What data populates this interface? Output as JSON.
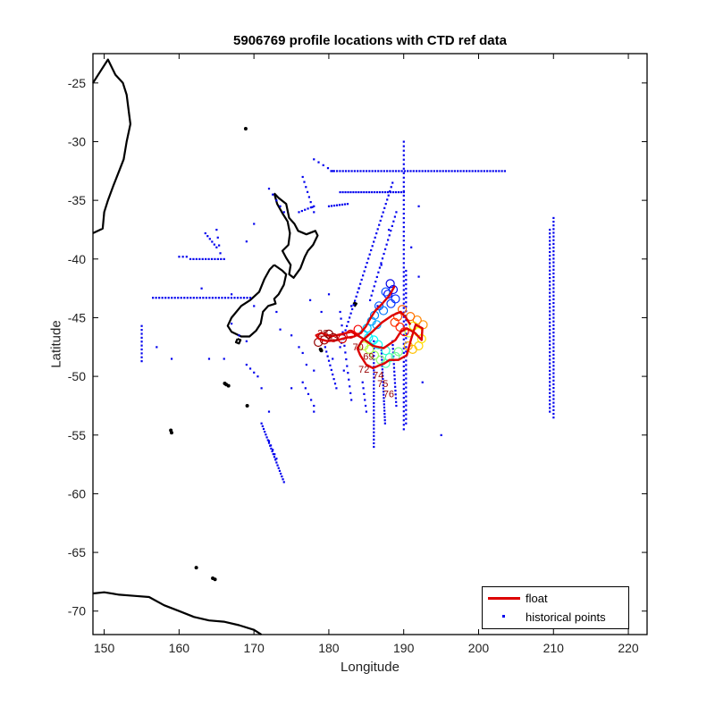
{
  "chart_data": {
    "type": "scatter",
    "title": "5906769 profile locations with CTD ref data",
    "xlabel": "Longitude",
    "ylabel": "Latitude",
    "xlim": [
      148.5,
      222.5
    ],
    "ylim": [
      -72,
      -22.5
    ],
    "xticks": [
      150,
      160,
      170,
      180,
      190,
      200,
      210,
      220
    ],
    "yticks": [
      -25,
      -30,
      -35,
      -40,
      -45,
      -50,
      -55,
      -60,
      -65,
      -70
    ],
    "grid": false,
    "legend_position": "bottom-right",
    "colors": {
      "float": "#dd0000",
      "historical": "#0000ee",
      "coast": "#000000"
    },
    "legend": [
      {
        "label": "float",
        "marker": "line",
        "color": "#dd0000"
      },
      {
        "label": "historical points",
        "marker": "dot",
        "color": "#0000ee"
      }
    ],
    "float_track": {
      "name": "float",
      "points": [
        [
          188.8,
          -42.3
        ],
        [
          188.1,
          -43.1
        ],
        [
          187.0,
          -43.9
        ],
        [
          186.2,
          -44.4
        ],
        [
          185.6,
          -45.0
        ],
        [
          185.0,
          -45.7
        ],
        [
          184.3,
          -46.3
        ],
        [
          183.4,
          -46.6
        ],
        [
          182.4,
          -46.7
        ],
        [
          181.2,
          -46.9
        ],
        [
          179.8,
          -47.0
        ],
        [
          178.7,
          -46.8
        ],
        [
          178.3,
          -46.5
        ],
        [
          179.0,
          -46.3
        ],
        [
          180.3,
          -46.6
        ],
        [
          181.7,
          -46.4
        ],
        [
          183.0,
          -46.2
        ],
        [
          184.6,
          -46.8
        ],
        [
          185.9,
          -47.4
        ],
        [
          187.3,
          -47.6
        ],
        [
          188.9,
          -46.9
        ],
        [
          189.6,
          -46.2
        ],
        [
          190.4,
          -45.9
        ],
        [
          191.5,
          -46.3
        ],
        [
          192.4,
          -46.9
        ],
        [
          192.5,
          -45.9
        ],
        [
          191.6,
          -45.6
        ],
        [
          191.0,
          -46.8
        ],
        [
          190.4,
          -48.2
        ],
        [
          189.3,
          -48.6
        ],
        [
          188.1,
          -48.6
        ],
        [
          187.4,
          -48.9
        ],
        [
          186.6,
          -49.1
        ],
        [
          185.9,
          -49.3
        ],
        [
          185.0,
          -49.0
        ],
        [
          184.2,
          -48.2
        ],
        [
          183.8,
          -47.6
        ],
        [
          184.4,
          -47.0
        ],
        [
          185.8,
          -46.2
        ],
        [
          187.1,
          -45.4
        ],
        [
          188.5,
          -44.8
        ],
        [
          189.6,
          -44.5
        ],
        [
          190.3,
          -45.0
        ],
        [
          190.9,
          -45.6
        ]
      ],
      "colored_points": [
        [
          188.2,
          -42.1
        ],
        [
          188.6,
          -42.6
        ],
        [
          187.9,
          -43.0
        ],
        [
          188.9,
          -43.4
        ],
        [
          188.3,
          -43.8
        ],
        [
          187.6,
          -42.8
        ],
        [
          186.7,
          -44.0
        ],
        [
          187.3,
          -44.4
        ],
        [
          186.1,
          -44.8
        ],
        [
          185.7,
          -45.3
        ],
        [
          186.4,
          -45.6
        ],
        [
          185.1,
          -45.9
        ],
        [
          184.6,
          -46.4
        ],
        [
          185.3,
          -46.7
        ],
        [
          186.0,
          -46.9
        ],
        [
          186.6,
          -47.3
        ],
        [
          187.6,
          -47.8
        ],
        [
          188.1,
          -48.4
        ],
        [
          187.6,
          -48.9
        ],
        [
          188.9,
          -48.3
        ],
        [
          189.3,
          -47.9
        ],
        [
          186.9,
          -48.6
        ],
        [
          186.1,
          -48.2
        ],
        [
          185.4,
          -47.7
        ],
        [
          184.7,
          -47.4
        ],
        [
          190.7,
          -46.3
        ],
        [
          191.3,
          -45.7
        ],
        [
          191.9,
          -46.2
        ],
        [
          192.4,
          -46.8
        ],
        [
          192.0,
          -47.4
        ],
        [
          191.2,
          -47.7
        ],
        [
          190.6,
          -47.4
        ],
        [
          192.6,
          -45.6
        ],
        [
          191.8,
          -45.2
        ],
        [
          190.9,
          -44.9
        ],
        [
          189.8,
          -44.3
        ],
        [
          189.2,
          -44.9
        ],
        [
          188.8,
          -45.4
        ],
        [
          189.5,
          -45.8
        ],
        [
          190.1,
          -46.2
        ],
        [
          183.9,
          -46.0
        ],
        [
          182.9,
          -46.4
        ],
        [
          181.8,
          -46.8
        ],
        [
          180.6,
          -46.7
        ],
        [
          179.4,
          -46.9
        ],
        [
          178.6,
          -47.1
        ],
        [
          180.0,
          -46.4
        ]
      ],
      "labels": [
        {
          "text": "75",
          "x": 187.2,
          "y": -50.9
        },
        {
          "text": "76",
          "x": 188.0,
          "y": -51.8
        },
        {
          "text": "72",
          "x": 184.7,
          "y": -49.7
        },
        {
          "text": "69",
          "x": 185.3,
          "y": -48.6
        },
        {
          "text": "70",
          "x": 183.9,
          "y": -47.8
        },
        {
          "text": "74",
          "x": 186.6,
          "y": -50.2
        },
        {
          "text": "28",
          "x": 179.2,
          "y": -46.6
        },
        {
          "text": "33",
          "x": 180.5,
          "y": -47.0
        }
      ]
    },
    "historical": {
      "name": "historical points",
      "segments": [
        {
          "x1": 180.3,
          "y1": -32.5,
          "x2": 203.5,
          "y2": -32.5,
          "n": 60
        },
        {
          "x1": 178.0,
          "y1": -31.5,
          "x2": 180.5,
          "y2": -32.5,
          "n": 5
        },
        {
          "x1": 190.0,
          "y1": -30.0,
          "x2": 190.0,
          "y2": -54.5,
          "n": 65
        },
        {
          "x1": 190.3,
          "y1": -41.0,
          "x2": 190.3,
          "y2": -54.0,
          "n": 35
        },
        {
          "x1": 210.0,
          "y1": -36.5,
          "x2": 210.0,
          "y2": -53.5,
          "n": 55
        },
        {
          "x1": 209.5,
          "y1": -37.5,
          "x2": 209.5,
          "y2": -53.0,
          "n": 50
        },
        {
          "x1": 188.5,
          "y1": -33.5,
          "x2": 181.5,
          "y2": -47.5,
          "n": 40
        },
        {
          "x1": 189.0,
          "y1": -36.0,
          "x2": 185.5,
          "y2": -43.5,
          "n": 20
        },
        {
          "x1": 181.5,
          "y1": -34.3,
          "x2": 190.0,
          "y2": -34.3,
          "n": 25
        },
        {
          "x1": 180.0,
          "y1": -35.5,
          "x2": 182.5,
          "y2": -35.3,
          "n": 8
        },
        {
          "x1": 176.5,
          "y1": -33.0,
          "x2": 178.0,
          "y2": -36.0,
          "n": 8
        },
        {
          "x1": 176.0,
          "y1": -36.0,
          "x2": 178.0,
          "y2": -35.5,
          "n": 6
        },
        {
          "x1": 172.0,
          "y1": -34.0,
          "x2": 174.0,
          "y2": -36.0,
          "n": 5
        },
        {
          "x1": 156.5,
          "y1": -43.3,
          "x2": 169.5,
          "y2": -43.3,
          "n": 32
        },
        {
          "x1": 160.0,
          "y1": -39.8,
          "x2": 161.0,
          "y2": -39.8,
          "n": 3
        },
        {
          "x1": 161.5,
          "y1": -40.0,
          "x2": 166.0,
          "y2": -40.0,
          "n": 12
        },
        {
          "x1": 163.5,
          "y1": -37.8,
          "x2": 165.0,
          "y2": -39.0,
          "n": 6
        },
        {
          "x1": 165.0,
          "y1": -37.5,
          "x2": 165.5,
          "y2": -39.5,
          "n": 4
        },
        {
          "x1": 155.0,
          "y1": -45.7,
          "x2": 155.0,
          "y2": -48.7,
          "n": 10
        },
        {
          "x1": 171.0,
          "y1": -54.0,
          "x2": 174.0,
          "y2": -59.0,
          "n": 22
        },
        {
          "x1": 172.0,
          "y1": -55.5,
          "x2": 173.0,
          "y2": -57.0,
          "n": 5
        },
        {
          "x1": 186.0,
          "y1": -47.0,
          "x2": 186.0,
          "y2": -56.0,
          "n": 30
        },
        {
          "x1": 187.0,
          "y1": -47.5,
          "x2": 187.5,
          "y2": -54.0,
          "n": 25
        },
        {
          "x1": 188.5,
          "y1": -47.0,
          "x2": 189.0,
          "y2": -52.5,
          "n": 18
        },
        {
          "x1": 181.5,
          "y1": -44.5,
          "x2": 183.0,
          "y2": -52.0,
          "n": 14
        },
        {
          "x1": 179.5,
          "y1": -47.5,
          "x2": 181.0,
          "y2": -51.0,
          "n": 10
        },
        {
          "x1": 169.0,
          "y1": -49.0,
          "x2": 170.5,
          "y2": -50.0,
          "n": 4
        },
        {
          "x1": 176.5,
          "y1": -50.5,
          "x2": 178.0,
          "y2": -52.5,
          "n": 5
        },
        {
          "x1": 184.5,
          "y1": -50.5,
          "x2": 185.0,
          "y2": -53.0,
          "n": 6
        }
      ],
      "points": [
        [
          157,
          -47.5
        ],
        [
          159,
          -48.5
        ],
        [
          163,
          -42.5
        ],
        [
          167,
          -43.0
        ],
        [
          169,
          -38.5
        ],
        [
          170,
          -37.0
        ],
        [
          167,
          -45.5
        ],
        [
          168,
          -46.5
        ],
        [
          169,
          -47.0
        ],
        [
          170,
          -44.0
        ],
        [
          173,
          -44.5
        ],
        [
          173.5,
          -46.0
        ],
        [
          176,
          -47.5
        ],
        [
          176.5,
          -48.0
        ],
        [
          177,
          -49.0
        ],
        [
          178,
          -49.5
        ],
        [
          175,
          -46.5
        ],
        [
          179,
          -44.5
        ],
        [
          180,
          -43.0
        ],
        [
          184,
          -42.5
        ],
        [
          183,
          -44.0
        ],
        [
          192,
          -35.5
        ],
        [
          191,
          -39.0
        ],
        [
          192,
          -41.5
        ],
        [
          192.5,
          -50.5
        ],
        [
          195,
          -55.0
        ],
        [
          164,
          -48.5
        ],
        [
          166,
          -48.5
        ],
        [
          171,
          -51.0
        ],
        [
          172,
          -53.0
        ],
        [
          175,
          -51.0
        ],
        [
          178,
          -53.0
        ],
        [
          177.5,
          -43.5
        ],
        [
          187,
          -40.5
        ],
        [
          186.5,
          -44.0
        ],
        [
          188,
          -37.5
        ],
        [
          180.5,
          -48.5
        ],
        [
          182,
          -49.5
        ]
      ]
    },
    "coastlines": {
      "australia_east": [
        [
          148.5,
          -25.0
        ],
        [
          149.5,
          -24.0
        ],
        [
          150.5,
          -23.0
        ],
        [
          151.5,
          -24.3
        ],
        [
          152.5,
          -25.0
        ],
        [
          153.0,
          -26.0
        ],
        [
          153.3,
          -27.5
        ],
        [
          153.5,
          -28.5
        ],
        [
          153.0,
          -30.0
        ],
        [
          152.6,
          -31.5
        ],
        [
          152.0,
          -32.5
        ],
        [
          151.2,
          -33.8
        ],
        [
          150.5,
          -35.0
        ],
        [
          150.0,
          -36.0
        ],
        [
          149.8,
          -37.4
        ],
        [
          148.5,
          -37.8
        ]
      ],
      "new_zealand_north": [
        [
          172.7,
          -34.4
        ],
        [
          173.3,
          -34.8
        ],
        [
          174.3,
          -35.3
        ],
        [
          174.7,
          -36.5
        ],
        [
          175.4,
          -37.0
        ],
        [
          175.9,
          -37.6
        ],
        [
          177.0,
          -37.9
        ],
        [
          178.2,
          -37.6
        ],
        [
          178.5,
          -38.0
        ],
        [
          177.9,
          -38.8
        ],
        [
          177.2,
          -39.3
        ],
        [
          176.8,
          -39.8
        ],
        [
          176.2,
          -40.8
        ],
        [
          175.3,
          -41.6
        ],
        [
          174.7,
          -41.3
        ],
        [
          174.9,
          -40.5
        ],
        [
          174.3,
          -39.9
        ],
        [
          173.8,
          -39.3
        ],
        [
          174.6,
          -38.8
        ],
        [
          174.8,
          -37.8
        ],
        [
          174.5,
          -36.8
        ],
        [
          173.9,
          -36.2
        ],
        [
          173.1,
          -35.3
        ],
        [
          172.7,
          -34.4
        ]
      ],
      "new_zealand_south": [
        [
          172.7,
          -40.5
        ],
        [
          173.8,
          -41.0
        ],
        [
          174.3,
          -41.3
        ],
        [
          174.0,
          -42.2
        ],
        [
          173.3,
          -43.0
        ],
        [
          172.7,
          -43.4
        ],
        [
          172.9,
          -43.8
        ],
        [
          171.9,
          -44.0
        ],
        [
          171.2,
          -44.5
        ],
        [
          170.9,
          -45.5
        ],
        [
          170.3,
          -46.1
        ],
        [
          169.4,
          -46.6
        ],
        [
          168.3,
          -46.6
        ],
        [
          167.0,
          -46.2
        ],
        [
          166.5,
          -45.7
        ],
        [
          167.0,
          -45.0
        ],
        [
          168.3,
          -44.0
        ],
        [
          169.5,
          -43.5
        ],
        [
          170.7,
          -42.8
        ],
        [
          171.4,
          -41.7
        ],
        [
          172.1,
          -40.9
        ],
        [
          172.7,
          -40.5
        ]
      ],
      "stewart_island": [
        [
          167.8,
          -46.8
        ],
        [
          168.2,
          -46.9
        ],
        [
          168.0,
          -47.2
        ],
        [
          167.6,
          -47.1
        ],
        [
          167.8,
          -46.8
        ]
      ],
      "chatham": [
        [
          183.3,
          -43.7
        ],
        [
          183.7,
          -43.8
        ],
        [
          183.5,
          -44.0
        ],
        [
          183.3,
          -43.7
        ]
      ],
      "small_islands": [
        [
          166.1,
          -50.6
        ],
        [
          166.3,
          -50.7
        ],
        [
          169.1,
          -52.5
        ],
        [
          158.9,
          -54.6
        ],
        [
          159.0,
          -54.8
        ],
        [
          168.9,
          -28.9
        ],
        [
          162.3,
          -66.3
        ],
        [
          164.5,
          -67.2
        ],
        [
          164.8,
          -67.3
        ],
        [
          178.9,
          -47.7
        ],
        [
          179.0,
          -47.8
        ],
        [
          166.6,
          -50.8
        ]
      ],
      "antarctica": [
        [
          148.5,
          -68.5
        ],
        [
          150.0,
          -68.4
        ],
        [
          152.0,
          -68.6
        ],
        [
          154.0,
          -68.7
        ],
        [
          156.0,
          -68.8
        ],
        [
          158.0,
          -69.5
        ],
        [
          160.0,
          -70.0
        ],
        [
          162.0,
          -70.5
        ],
        [
          164.0,
          -70.8
        ],
        [
          166.0,
          -70.9
        ],
        [
          168.0,
          -71.2
        ],
        [
          170.0,
          -71.6
        ],
        [
          171.0,
          -72.0
        ]
      ]
    }
  }
}
